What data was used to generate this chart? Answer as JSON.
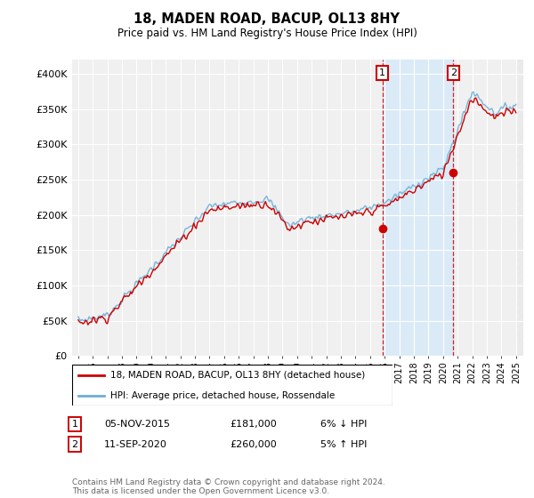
{
  "title": "18, MADEN ROAD, BACUP, OL13 8HY",
  "subtitle": "Price paid vs. HM Land Registry's House Price Index (HPI)",
  "ylabel_ticks": [
    "£0",
    "£50K",
    "£100K",
    "£150K",
    "£200K",
    "£250K",
    "£300K",
    "£350K",
    "£400K"
  ],
  "ytick_vals": [
    0,
    50000,
    100000,
    150000,
    200000,
    250000,
    300000,
    350000,
    400000
  ],
  "ylim": [
    0,
    420000
  ],
  "xlim_start": 1994.58,
  "xlim_end": 2025.5,
  "hpi_color": "#6baed6",
  "price_color": "#cc0000",
  "marker1_date": 2015.85,
  "marker2_date": 2020.7,
  "marker1_price": 181000,
  "marker2_price": 260000,
  "legend_line1": "18, MADEN ROAD, BACUP, OL13 8HY (detached house)",
  "legend_line2": "HPI: Average price, detached house, Rossendale",
  "footnote": "Contains HM Land Registry data © Crown copyright and database right 2024.\nThis data is licensed under the Open Government Licence v3.0.",
  "background_color": "#ffffff",
  "plot_bg_color": "#f0f0f0",
  "shade_color": "#daeaf7",
  "grid_color": "#ffffff",
  "xtick_years": [
    1995,
    1996,
    1997,
    1998,
    1999,
    2000,
    2001,
    2002,
    2003,
    2004,
    2005,
    2006,
    2007,
    2008,
    2009,
    2010,
    2011,
    2012,
    2013,
    2014,
    2015,
    2016,
    2017,
    2018,
    2019,
    2020,
    2021,
    2022,
    2023,
    2024,
    2025
  ]
}
